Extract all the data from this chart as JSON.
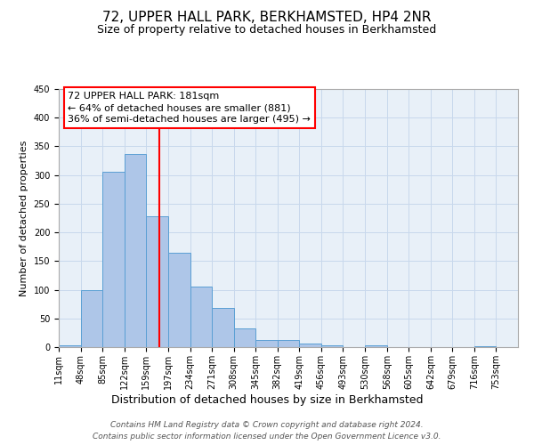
{
  "title": "72, UPPER HALL PARK, BERKHAMSTED, HP4 2NR",
  "subtitle": "Size of property relative to detached houses in Berkhamsted",
  "xlabel": "Distribution of detached houses by size in Berkhamsted",
  "ylabel": "Number of detached properties",
  "bin_labels": [
    "11sqm",
    "48sqm",
    "85sqm",
    "122sqm",
    "159sqm",
    "197sqm",
    "234sqm",
    "271sqm",
    "308sqm",
    "345sqm",
    "382sqm",
    "419sqm",
    "456sqm",
    "493sqm",
    "530sqm",
    "568sqm",
    "605sqm",
    "642sqm",
    "679sqm",
    "716sqm",
    "753sqm"
  ],
  "bin_edges": [
    11,
    48,
    85,
    122,
    159,
    197,
    234,
    271,
    308,
    345,
    382,
    419,
    456,
    493,
    530,
    568,
    605,
    642,
    679,
    716,
    753
  ],
  "bar_heights": [
    3,
    99,
    305,
    337,
    228,
    165,
    105,
    69,
    32,
    13,
    13,
    6,
    3,
    0,
    3,
    0,
    0,
    0,
    0,
    2
  ],
  "bar_color": "#aec6e8",
  "bar_edge_color": "#5a9fd4",
  "vline_x": 181,
  "vline_color": "red",
  "annotation_line1": "72 UPPER HALL PARK: 181sqm",
  "annotation_line2": "← 64% of detached houses are smaller (881)",
  "annotation_line3": "36% of semi-detached houses are larger (495) →",
  "ylim": [
    0,
    450
  ],
  "yticks": [
    0,
    50,
    100,
    150,
    200,
    250,
    300,
    350,
    400,
    450
  ],
  "grid_color": "#c8d8ec",
  "background_color": "#e8f0f8",
  "footer_line1": "Contains HM Land Registry data © Crown copyright and database right 2024.",
  "footer_line2": "Contains public sector information licensed under the Open Government Licence v3.0.",
  "title_fontsize": 11,
  "subtitle_fontsize": 9,
  "xlabel_fontsize": 9,
  "ylabel_fontsize": 8,
  "tick_fontsize": 7,
  "annotation_fontsize": 8,
  "footer_fontsize": 6.5
}
